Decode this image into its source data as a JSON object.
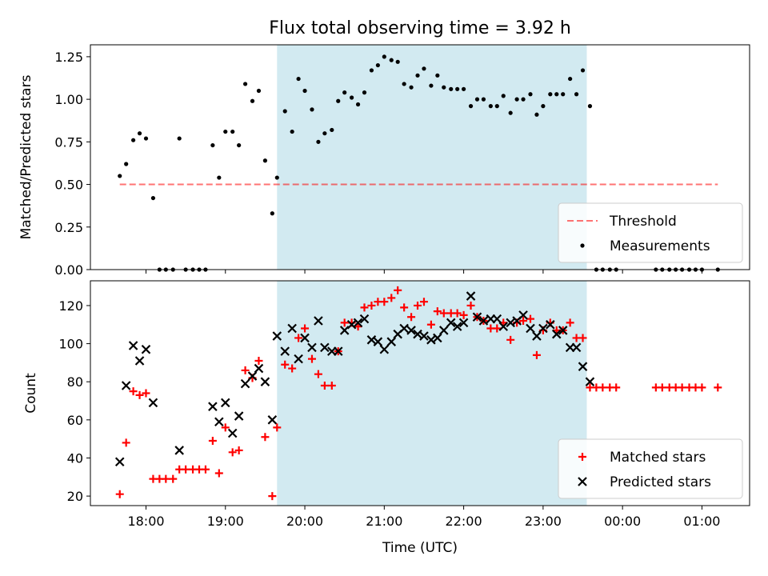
{
  "title": "Flux total observing time = 3.92 h",
  "x_axis": {
    "label": "Time (UTC)",
    "tick_labels": [
      "18:00",
      "19:00",
      "20:00",
      "21:00",
      "22:00",
      "23:00",
      "00:00",
      "01:00"
    ],
    "tick_hours": [
      18,
      19,
      20,
      21,
      22,
      23,
      24,
      25
    ],
    "range_hours": [
      17.3,
      25.6
    ]
  },
  "observing_window_hours": [
    19.65,
    23.55
  ],
  "colors": {
    "window": "#add8e6",
    "threshold": "#ff0000",
    "measurements": "#000000",
    "matched": "#ff0000",
    "predicted": "#000000"
  },
  "chart_data": [
    {
      "type": "scatter",
      "ylabel": "Matched/Predicted stars",
      "ylim": [
        0,
        1.32
      ],
      "yticks": [
        0.0,
        0.25,
        0.5,
        0.75,
        1.0,
        1.25
      ],
      "ytick_labels": [
        "0.00",
        "0.25",
        "0.50",
        "0.75",
        "1.00",
        "1.25"
      ],
      "legend_position": "bottom-right",
      "threshold": {
        "name": "Threshold",
        "value": 0.5,
        "x_range": [
          17.67,
          25.2
        ]
      },
      "series": [
        {
          "name": "Measurements",
          "points": [
            [
              17.67,
              0.55
            ],
            [
              17.75,
              0.62
            ],
            [
              17.84,
              0.76
            ],
            [
              17.92,
              0.8
            ],
            [
              18.0,
              0.77
            ],
            [
              18.09,
              0.42
            ],
            [
              18.17,
              0.0
            ],
            [
              18.25,
              0.0
            ],
            [
              18.34,
              0.0
            ],
            [
              18.42,
              0.77
            ],
            [
              18.5,
              0.0
            ],
            [
              18.59,
              0.0
            ],
            [
              18.67,
              0.0
            ],
            [
              18.75,
              0.0
            ],
            [
              18.84,
              0.73
            ],
            [
              18.92,
              0.54
            ],
            [
              19.0,
              0.81
            ],
            [
              19.09,
              0.81
            ],
            [
              19.17,
              0.73
            ],
            [
              19.25,
              1.09
            ],
            [
              19.34,
              0.99
            ],
            [
              19.42,
              1.05
            ],
            [
              19.5,
              0.64
            ],
            [
              19.59,
              0.33
            ],
            [
              19.65,
              0.54
            ],
            [
              19.75,
              0.93
            ],
            [
              19.84,
              0.81
            ],
            [
              19.92,
              1.12
            ],
            [
              20.0,
              1.05
            ],
            [
              20.09,
              0.94
            ],
            [
              20.17,
              0.75
            ],
            [
              20.25,
              0.8
            ],
            [
              20.34,
              0.82
            ],
            [
              20.42,
              0.99
            ],
            [
              20.5,
              1.04
            ],
            [
              20.59,
              1.01
            ],
            [
              20.67,
              0.97
            ],
            [
              20.75,
              1.04
            ],
            [
              20.84,
              1.17
            ],
            [
              20.92,
              1.2
            ],
            [
              21.0,
              1.25
            ],
            [
              21.09,
              1.23
            ],
            [
              21.17,
              1.22
            ],
            [
              21.25,
              1.09
            ],
            [
              21.34,
              1.07
            ],
            [
              21.42,
              1.14
            ],
            [
              21.5,
              1.18
            ],
            [
              21.59,
              1.08
            ],
            [
              21.67,
              1.14
            ],
            [
              21.75,
              1.07
            ],
            [
              21.84,
              1.06
            ],
            [
              21.92,
              1.06
            ],
            [
              22.0,
              1.06
            ],
            [
              22.09,
              0.96
            ],
            [
              22.17,
              1.0
            ],
            [
              22.25,
              1.0
            ],
            [
              22.34,
              0.96
            ],
            [
              22.42,
              0.96
            ],
            [
              22.5,
              1.02
            ],
            [
              22.59,
              0.92
            ],
            [
              22.67,
              1.0
            ],
            [
              22.75,
              1.0
            ],
            [
              22.84,
              1.03
            ],
            [
              22.92,
              0.91
            ],
            [
              23.0,
              0.96
            ],
            [
              23.09,
              1.03
            ],
            [
              23.17,
              1.03
            ],
            [
              23.25,
              1.03
            ],
            [
              23.34,
              1.12
            ],
            [
              23.42,
              1.03
            ],
            [
              23.5,
              1.17
            ],
            [
              23.59,
              0.96
            ],
            [
              23.67,
              0.0
            ],
            [
              23.75,
              0.0
            ],
            [
              23.84,
              0.0
            ],
            [
              23.92,
              0.0
            ],
            [
              24.42,
              0.0
            ],
            [
              24.5,
              0.0
            ],
            [
              24.59,
              0.0
            ],
            [
              24.67,
              0.0
            ],
            [
              24.75,
              0.0
            ],
            [
              24.84,
              0.0
            ],
            [
              24.92,
              0.0
            ],
            [
              25.0,
              0.0
            ],
            [
              25.2,
              0.0
            ]
          ]
        }
      ]
    },
    {
      "type": "scatter",
      "ylabel": "Count",
      "ylim": [
        15,
        133
      ],
      "yticks": [
        20,
        40,
        60,
        80,
        100,
        120
      ],
      "ytick_labels": [
        "20",
        "40",
        "60",
        "80",
        "100",
        "120"
      ],
      "legend_position": "bottom-right",
      "series": [
        {
          "name": "Matched stars",
          "points": [
            [
              17.67,
              21
            ],
            [
              17.75,
              48
            ],
            [
              17.84,
              75
            ],
            [
              17.92,
              73
            ],
            [
              18.0,
              74
            ],
            [
              18.09,
              29
            ],
            [
              18.17,
              29
            ],
            [
              18.25,
              29
            ],
            [
              18.34,
              29
            ],
            [
              18.42,
              34
            ],
            [
              18.5,
              34
            ],
            [
              18.59,
              34
            ],
            [
              18.67,
              34
            ],
            [
              18.75,
              34
            ],
            [
              18.84,
              49
            ],
            [
              18.92,
              32
            ],
            [
              19.0,
              56
            ],
            [
              19.09,
              43
            ],
            [
              19.17,
              44
            ],
            [
              19.25,
              86
            ],
            [
              19.34,
              82
            ],
            [
              19.42,
              91
            ],
            [
              19.5,
              51
            ],
            [
              19.59,
              20
            ],
            [
              19.65,
              56
            ],
            [
              19.75,
              89
            ],
            [
              19.84,
              87
            ],
            [
              19.92,
              103
            ],
            [
              20.0,
              108
            ],
            [
              20.09,
              92
            ],
            [
              20.17,
              84
            ],
            [
              20.25,
              78
            ],
            [
              20.34,
              78
            ],
            [
              20.42,
              96
            ],
            [
              20.5,
              111
            ],
            [
              20.59,
              111
            ],
            [
              20.67,
              109
            ],
            [
              20.75,
              119
            ],
            [
              20.84,
              120
            ],
            [
              20.92,
              122
            ],
            [
              21.0,
              122
            ],
            [
              21.09,
              124
            ],
            [
              21.17,
              128
            ],
            [
              21.25,
              119
            ],
            [
              21.34,
              114
            ],
            [
              21.42,
              120
            ],
            [
              21.5,
              122
            ],
            [
              21.59,
              110
            ],
            [
              21.67,
              117
            ],
            [
              21.75,
              116
            ],
            [
              21.84,
              116
            ],
            [
              21.92,
              116
            ],
            [
              22.0,
              115
            ],
            [
              22.09,
              120
            ],
            [
              22.17,
              114
            ],
            [
              22.25,
              112
            ],
            [
              22.34,
              108
            ],
            [
              22.42,
              108
            ],
            [
              22.5,
              111
            ],
            [
              22.59,
              102
            ],
            [
              22.67,
              111
            ],
            [
              22.75,
              112
            ],
            [
              22.84,
              113
            ],
            [
              22.92,
              94
            ],
            [
              23.0,
              107
            ],
            [
              23.09,
              111
            ],
            [
              23.17,
              107
            ],
            [
              23.25,
              107
            ],
            [
              23.34,
              111
            ],
            [
              23.42,
              103
            ],
            [
              23.5,
              103
            ],
            [
              23.59,
              77
            ],
            [
              23.67,
              77
            ],
            [
              23.75,
              77
            ],
            [
              23.84,
              77
            ],
            [
              23.92,
              77
            ],
            [
              24.42,
              77
            ],
            [
              24.5,
              77
            ],
            [
              24.59,
              77
            ],
            [
              24.67,
              77
            ],
            [
              24.75,
              77
            ],
            [
              24.84,
              77
            ],
            [
              24.92,
              77
            ],
            [
              25.0,
              77
            ],
            [
              25.2,
              77
            ]
          ]
        },
        {
          "name": "Predicted stars",
          "points": [
            [
              17.67,
              38
            ],
            [
              17.75,
              78
            ],
            [
              17.84,
              99
            ],
            [
              17.92,
              91
            ],
            [
              18.0,
              97
            ],
            [
              18.09,
              69
            ],
            [
              18.42,
              44
            ],
            [
              18.84,
              67
            ],
            [
              18.92,
              59
            ],
            [
              19.0,
              69
            ],
            [
              19.09,
              53
            ],
            [
              19.17,
              62
            ],
            [
              19.25,
              79
            ],
            [
              19.34,
              83
            ],
            [
              19.42,
              87
            ],
            [
              19.5,
              80
            ],
            [
              19.59,
              60
            ],
            [
              19.65,
              104
            ],
            [
              19.75,
              96
            ],
            [
              19.84,
              108
            ],
            [
              19.92,
              92
            ],
            [
              20.0,
              103
            ],
            [
              20.09,
              98
            ],
            [
              20.17,
              112
            ],
            [
              20.25,
              98
            ],
            [
              20.34,
              96
            ],
            [
              20.42,
              96
            ],
            [
              20.5,
              107
            ],
            [
              20.59,
              110
            ],
            [
              20.67,
              111
            ],
            [
              20.75,
              113
            ],
            [
              20.84,
              102
            ],
            [
              20.92,
              101
            ],
            [
              21.0,
              97
            ],
            [
              21.09,
              101
            ],
            [
              21.17,
              105
            ],
            [
              21.25,
              108
            ],
            [
              21.34,
              107
            ],
            [
              21.42,
              105
            ],
            [
              21.5,
              104
            ],
            [
              21.59,
              102
            ],
            [
              21.67,
              103
            ],
            [
              21.75,
              107
            ],
            [
              21.84,
              111
            ],
            [
              21.92,
              109
            ],
            [
              22.0,
              111
            ],
            [
              22.09,
              125
            ],
            [
              22.17,
              114
            ],
            [
              22.25,
              112
            ],
            [
              22.34,
              113
            ],
            [
              22.42,
              113
            ],
            [
              22.5,
              109
            ],
            [
              22.59,
              111
            ],
            [
              22.67,
              112
            ],
            [
              22.75,
              115
            ],
            [
              22.84,
              108
            ],
            [
              22.92,
              104
            ],
            [
              23.0,
              108
            ],
            [
              23.09,
              110
            ],
            [
              23.17,
              105
            ],
            [
              23.25,
              107
            ],
            [
              23.34,
              98
            ],
            [
              23.42,
              98
            ],
            [
              23.5,
              88
            ],
            [
              23.59,
              80
            ]
          ]
        }
      ]
    }
  ]
}
